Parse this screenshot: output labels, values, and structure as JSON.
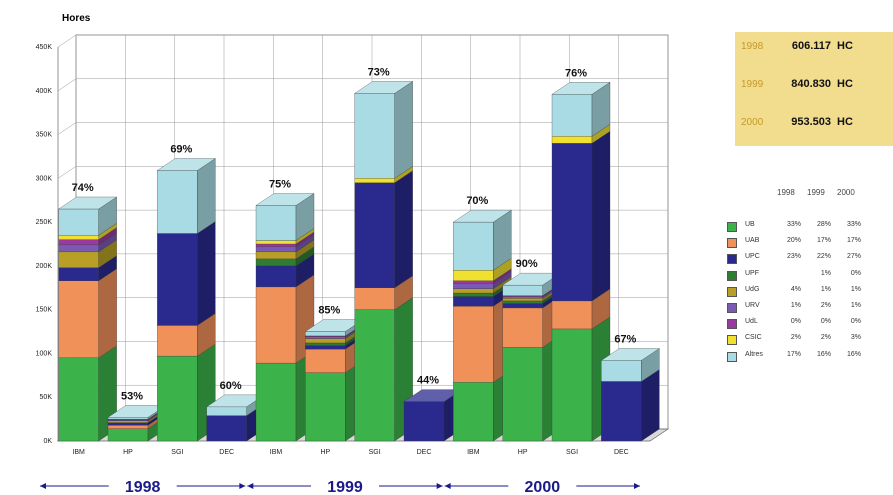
{
  "chart_data": {
    "type": "bar",
    "stacked": true,
    "ylabel": "Hores",
    "ylim": [
      0,
      450000
    ],
    "y_ticks": [
      "0K",
      "50K",
      "100K",
      "150K",
      "200K",
      "250K",
      "300K",
      "350K",
      "400K",
      "450K"
    ],
    "categories": [
      "IBM",
      "HP",
      "SGI",
      "DEC",
      "IBM",
      "HP",
      "SGI",
      "DEC",
      "IBM",
      "HP",
      "SGI",
      "DEC"
    ],
    "years": [
      "1998",
      "1999",
      "2000"
    ],
    "year_groups": [
      [
        0,
        3
      ],
      [
        4,
        7
      ],
      [
        8,
        11
      ]
    ],
    "percent_labels": [
      "74%",
      "53%",
      "69%",
      "60%",
      "75%",
      "85%",
      "73%",
      "44%",
      "70%",
      "90%",
      "76%",
      "67%"
    ],
    "series": [
      {
        "name": "UB",
        "color": "#3bb24a",
        "values": [
          95000,
          14000,
          97000,
          0,
          89000,
          78000,
          150000,
          0,
          67000,
          107000,
          128000,
          0
        ]
      },
      {
        "name": "UAB",
        "color": "#f0915a",
        "values": [
          88000,
          4000,
          35000,
          0,
          87000,
          27000,
          25000,
          0,
          87000,
          45000,
          32000,
          0
        ]
      },
      {
        "name": "UPC",
        "color": "#2a2a8e",
        "values": [
          15000,
          3000,
          105000,
          29000,
          24000,
          4000,
          120000,
          45000,
          11000,
          5000,
          180000,
          68000
        ]
      },
      {
        "name": "UPF",
        "color": "#2e7d32",
        "values": [
          0,
          0,
          0,
          0,
          8000,
          3000,
          0,
          0,
          4000,
          3000,
          0,
          0
        ]
      },
      {
        "name": "UdG",
        "color": "#b8a028",
        "values": [
          18000,
          2000,
          0,
          0,
          8000,
          5000,
          0,
          0,
          5000,
          3000,
          0,
          0
        ]
      },
      {
        "name": "URV",
        "color": "#7a5ab5",
        "values": [
          8000,
          1000,
          0,
          0,
          6000,
          2000,
          0,
          0,
          6000,
          2000,
          0,
          0
        ]
      },
      {
        "name": "UdL",
        "color": "#9a3aa0",
        "values": [
          6000,
          1000,
          0,
          0,
          3000,
          1000,
          0,
          0,
          3000,
          1000,
          0,
          0
        ]
      },
      {
        "name": "CSIC",
        "color": "#f0e030",
        "values": [
          5000,
          0,
          0,
          0,
          4000,
          0,
          5000,
          0,
          12000,
          0,
          8000,
          0
        ]
      },
      {
        "name": "Altres",
        "color": "#a8dbe3",
        "values": [
          30000,
          2000,
          72000,
          10000,
          40000,
          5000,
          97000,
          0,
          55000,
          12000,
          48000,
          24000
        ]
      }
    ],
    "totals": [
      {
        "year": "1998",
        "value": "606.117",
        "unit": "HC"
      },
      {
        "year": "1999",
        "value": "840.830",
        "unit": "HC"
      },
      {
        "year": "2000",
        "value": "953.503",
        "unit": "HC"
      }
    ],
    "legend_header": [
      "1998",
      "1999",
      "2000"
    ],
    "legend_rows": [
      {
        "name": "UB",
        "v": [
          "33%",
          "28%",
          "33%"
        ]
      },
      {
        "name": "UAB",
        "v": [
          "20%",
          "17%",
          "17%"
        ]
      },
      {
        "name": "UPC",
        "v": [
          "23%",
          "22%",
          "27%"
        ]
      },
      {
        "name": "UPF",
        "v": [
          "",
          "1%",
          "0%"
        ]
      },
      {
        "name": "UdG",
        "v": [
          "4%",
          "1%",
          "1%"
        ]
      },
      {
        "name": "URV",
        "v": [
          "1%",
          "2%",
          "1%"
        ]
      },
      {
        "name": "UdL",
        "v": [
          "0%",
          "0%",
          "0%"
        ]
      },
      {
        "name": "CSIC",
        "v": [
          "2%",
          "2%",
          "3%"
        ]
      },
      {
        "name": "Altres",
        "v": [
          "17%",
          "16%",
          "16%"
        ]
      }
    ]
  }
}
